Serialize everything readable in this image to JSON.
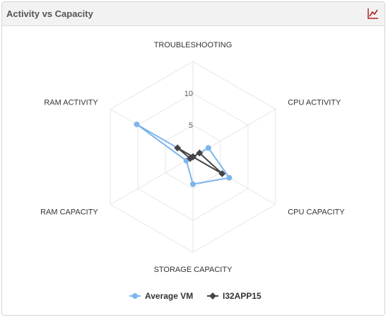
{
  "panel": {
    "title": "Activity vs Capacity",
    "chart_button_icon": "line-chart-icon"
  },
  "colors": {
    "series_average": "#7cb5ec",
    "series_server": "#434348",
    "grid": "#e6e6e6",
    "chart_icon": "#b22222"
  },
  "chart_data": {
    "type": "radar",
    "categories": [
      "TROUBLESHOOTING",
      "CPU ACTIVITY",
      "CPU CAPACITY",
      "STORAGE CAPACITY",
      "RAM CAPACITY",
      "RAM ACTIVITY"
    ],
    "series": [
      {
        "name": "Average VM",
        "values": [
          0,
          2.8,
          6.6,
          4.3,
          1.2,
          10.2
        ]
      },
      {
        "name": "I32APP15",
        "values": [
          0,
          1.2,
          5.3,
          0,
          0.5,
          2.8
        ]
      }
    ],
    "ylim": [
      0,
      15
    ],
    "tick_labels": [
      "5",
      "10"
    ],
    "tick_values": [
      5,
      10
    ],
    "grid": true,
    "legend_position": "bottom"
  }
}
